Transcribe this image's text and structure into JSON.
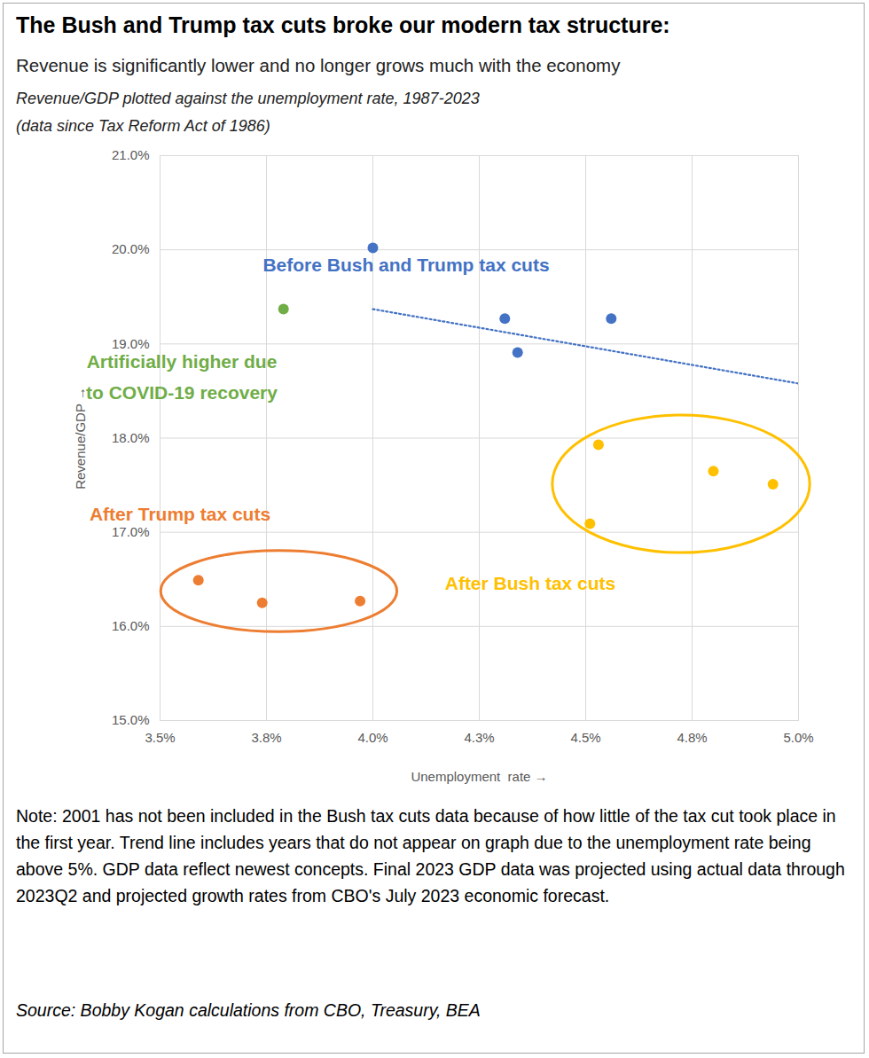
{
  "chart_data": {
    "type": "scatter",
    "title": "The Bush and Trump tax cuts broke our modern tax structure:",
    "subtitle": "Revenue is significantly lower and no longer grows much with the economy",
    "description": [
      "Revenue/GDP plotted against the unemployment rate, 1987-2023",
      "(data since Tax Reform Act of 1986)"
    ],
    "x_label": "Unemployment  rate",
    "y_label": "Revenue/GDP",
    "xlim": [
      3.5,
      5.0
    ],
    "xticks": [
      {
        "value": 3.5,
        "label": "3.5%"
      },
      {
        "value": 3.75,
        "label": "3.8%"
      },
      {
        "value": 4.0,
        "label": "4.0%"
      },
      {
        "value": 4.25,
        "label": "4.3%"
      },
      {
        "value": 4.5,
        "label": "4.5%"
      },
      {
        "value": 4.75,
        "label": "4.8%"
      },
      {
        "value": 5.0,
        "label": "5.0%"
      }
    ],
    "ylim": [
      15,
      21
    ],
    "yticks": [
      {
        "value": 15,
        "label": "15.0%"
      },
      {
        "value": 16,
        "label": "16.0%"
      },
      {
        "value": 17,
        "label": "17.0%"
      },
      {
        "value": 18,
        "label": "18.0%"
      },
      {
        "value": 19,
        "label": "19.0%"
      },
      {
        "value": 20,
        "label": "20.0%"
      },
      {
        "value": 21,
        "label": "21.0%"
      }
    ],
    "grid": true,
    "series": [
      {
        "name": "Before Bush and Trump tax cuts",
        "color": "#4472c4",
        "marker": "circle",
        "x": [
          4.0,
          4.31,
          4.34,
          4.56
        ],
        "values": [
          20.02,
          19.27,
          18.91,
          19.27
        ]
      },
      {
        "name": "Artificially higher due\nto COVID-19 recovery",
        "color": "#70ad47",
        "marker": "circle",
        "x": [
          3.79
        ],
        "values": [
          19.37
        ]
      },
      {
        "name": "After Trump tax cuts",
        "color": "#ed7d31",
        "marker": "circle",
        "x": [
          3.59,
          3.74,
          3.97
        ],
        "values": [
          16.49,
          16.25,
          16.27
        ]
      },
      {
        "name": "After Bush tax cuts",
        "color": "#ffc000",
        "marker": "circle",
        "x": [
          4.53,
          4.51,
          4.8,
          4.94
        ],
        "values": [
          17.93,
          17.09,
          17.65,
          17.51
        ]
      }
    ],
    "trend": {
      "type": "line",
      "color": "#4472c4",
      "line_style": "dotted",
      "x": [
        4.0,
        5.0
      ],
      "values": [
        19.37,
        18.58
      ]
    },
    "note": "Note: 2001  has not been included in the Bush tax cuts data because of how little of the tax cut took place in the first year. Trend line includes years that do not appear on graph due to the unemployment rate being above 5%. GDP data reflect newest concepts. Final 2023 GDP data was projected using actual data through 2023Q2 and projected growth rates from CBO's July 2023 economic forecast.",
    "source": "Source: Bobby Kogan calculations from CBO, Treasury, BEA"
  }
}
